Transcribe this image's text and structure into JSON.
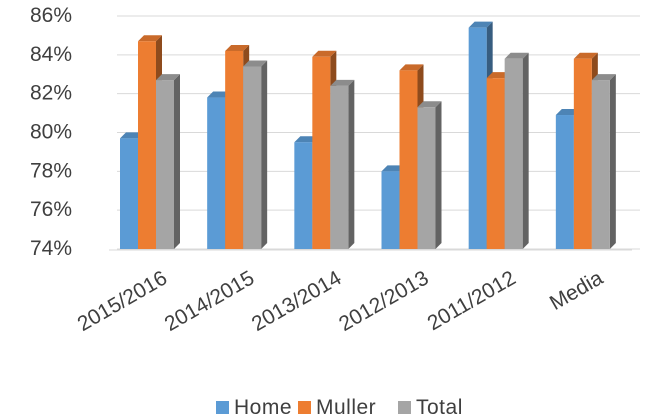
{
  "chart_data": {
    "type": "bar",
    "categories": [
      "2015/2016",
      "2014/2015",
      "2013/2014",
      "2012/2013",
      "2011/2012",
      "Media"
    ],
    "series": [
      {
        "name": "Home",
        "values": [
          79.7,
          81.8,
          79.5,
          78.0,
          85.4,
          80.9
        ],
        "color": "#5b9bd5"
      },
      {
        "name": "Muller",
        "values": [
          84.7,
          84.2,
          83.9,
          83.2,
          82.8,
          83.8
        ],
        "color": "#ed7d31"
      },
      {
        "name": "Total",
        "values": [
          82.7,
          83.4,
          82.4,
          81.3,
          83.8,
          82.7
        ],
        "color": "#a5a5a5"
      }
    ],
    "ylim": [
      74,
      86
    ],
    "yticks": [
      "74%",
      "76%",
      "78%",
      "80%",
      "82%",
      "84%",
      "86%"
    ],
    "grid": true,
    "legend_position": "bottom",
    "style": "3d-clustered-column"
  }
}
